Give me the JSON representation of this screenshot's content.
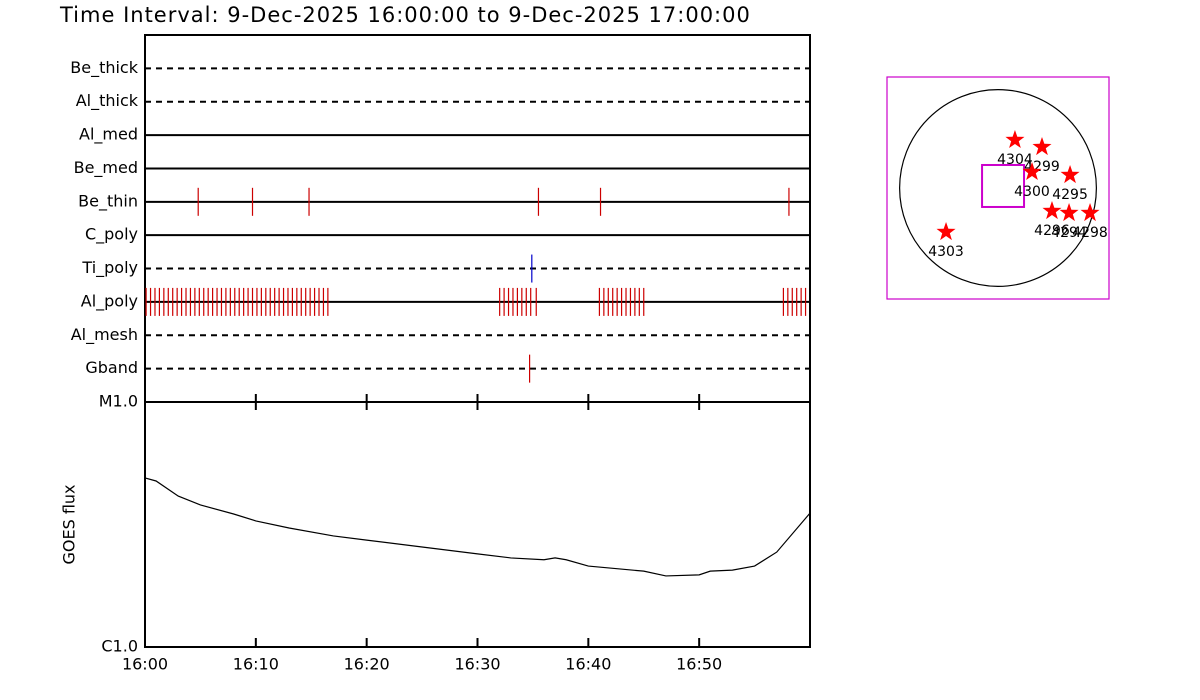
{
  "title": "Time Interval:  9-Dec-2025 16:00:00 to  9-Dec-2025 17:00:00",
  "chart_data": [
    {
      "type": "timeline",
      "xlim": [
        0,
        60
      ],
      "rows": [
        {
          "name": "Be_thick",
          "line": "dashed",
          "color": "#cc0000",
          "events": []
        },
        {
          "name": "Al_thick",
          "line": "dashed",
          "color": "#cc0000",
          "events": []
        },
        {
          "name": "Al_med",
          "line": "solid",
          "color": "#cc0000",
          "events": []
        },
        {
          "name": "Be_med",
          "line": "solid",
          "color": "#cc0000",
          "events": []
        },
        {
          "name": "Be_thin",
          "line": "solid",
          "color": "#cc0000",
          "events": [
            4.8,
            9.7,
            14.8,
            35.5,
            41.1,
            58.1
          ]
        },
        {
          "name": "C_poly",
          "line": "solid",
          "color": "#cc0000",
          "events": []
        },
        {
          "name": "Ti_poly",
          "line": "dashed",
          "color": "#0000cc",
          "events": [
            34.9
          ]
        },
        {
          "name": "Al_poly",
          "line": "solid",
          "color": "#cc0000",
          "events": [
            0.1,
            0.5,
            0.9,
            1.3,
            1.7,
            2.1,
            2.5,
            2.9,
            3.3,
            3.7,
            4.1,
            4.5,
            4.9,
            5.3,
            5.7,
            6.1,
            6.5,
            6.9,
            7.3,
            7.7,
            8.1,
            8.5,
            8.9,
            9.3,
            9.7,
            10.1,
            10.5,
            10.9,
            11.3,
            11.7,
            12.1,
            12.5,
            12.9,
            13.3,
            13.7,
            14.1,
            14.5,
            14.9,
            15.3,
            15.7,
            16.1,
            16.5,
            32.0,
            32.4,
            32.8,
            33.2,
            33.6,
            34.0,
            34.4,
            34.8,
            35.3,
            41.0,
            41.4,
            41.8,
            42.2,
            42.6,
            43.0,
            43.4,
            43.8,
            44.2,
            44.6,
            45.0,
            57.6,
            58.0,
            58.4,
            58.8,
            59.2,
            59.6
          ]
        },
        {
          "name": "Al_mesh",
          "line": "dashed",
          "color": "#cc0000",
          "events": []
        },
        {
          "name": "Gband",
          "line": "dashed",
          "color": "#cc0000",
          "events": [
            34.7
          ]
        }
      ]
    },
    {
      "type": "line",
      "ylabel": "GOES flux",
      "log_scale": true,
      "color": "#000000",
      "xlim": [
        0,
        60
      ],
      "xticks": [
        {
          "value": 0,
          "label": "16:00"
        },
        {
          "value": 10,
          "label": "16:10"
        },
        {
          "value": 20,
          "label": "16:20"
        },
        {
          "value": 30,
          "label": "16:30"
        },
        {
          "value": 40,
          "label": "16:40"
        },
        {
          "value": 50,
          "label": "16:50"
        }
      ],
      "ylim": [
        1e-06,
        1e-05
      ],
      "yticks": [
        {
          "value": 1e-06,
          "label": "C1.0"
        },
        {
          "value": 1e-05,
          "label": "M1.0"
        }
      ],
      "x": [
        0,
        1,
        3,
        5,
        8,
        10,
        13,
        17,
        20,
        25,
        30,
        33,
        36,
        37,
        38,
        40,
        45,
        47,
        50,
        51,
        53,
        55,
        57,
        60
      ],
      "values": [
        4.9e-06,
        4.76e-06,
        4.13e-06,
        3.8e-06,
        3.49e-06,
        3.27e-06,
        3.06e-06,
        2.84e-06,
        2.73e-06,
        2.56e-06,
        2.4e-06,
        2.31e-06,
        2.27e-06,
        2.31e-06,
        2.27e-06,
        2.14e-06,
        2.04e-06,
        1.95e-06,
        1.97e-06,
        2.04e-06,
        2.06e-06,
        2.14e-06,
        2.44e-06,
        3.52e-06
      ]
    },
    {
      "type": "scatter",
      "xlim": [
        -1100,
        1100
      ],
      "ylim": [
        -1100,
        1100
      ],
      "solar_radius": 975,
      "color": "#ff0000",
      "frame_color": "#cc00cc",
      "fov": {
        "x": 50,
        "y": 20,
        "width": 416,
        "height": 416
      },
      "points": [
        {
          "name": "4304",
          "x": 168,
          "y": 476
        },
        {
          "name": "4299",
          "x": 436,
          "y": 406
        },
        {
          "name": "4300",
          "x": 337,
          "y": 159
        },
        {
          "name": "4295",
          "x": 714,
          "y": 129
        },
        {
          "name": "4296",
          "x": 535,
          "y": -228
        },
        {
          "name": "4294",
          "x": 704,
          "y": -248
        },
        {
          "name": "4298",
          "x": 912,
          "y": -248
        },
        {
          "name": "4303",
          "x": -515,
          "y": -436
        }
      ]
    }
  ]
}
